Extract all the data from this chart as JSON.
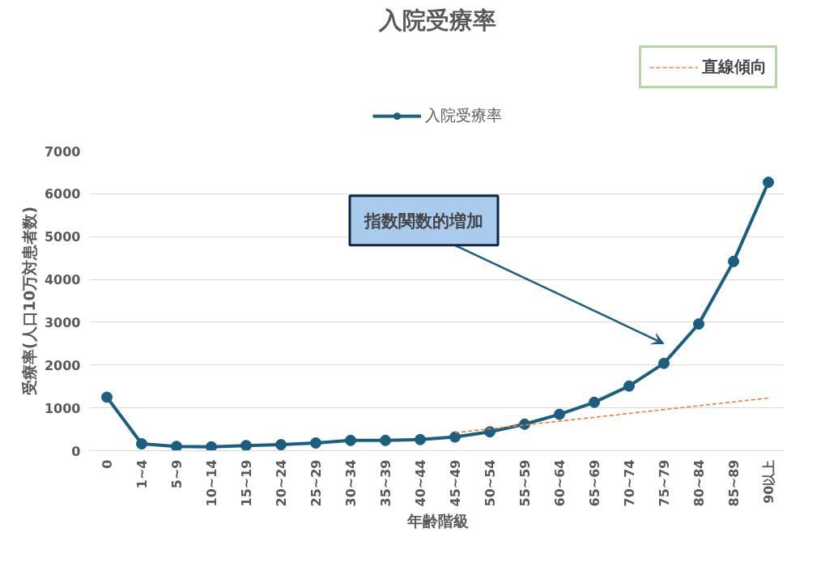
{
  "chart_data": {
    "type": "line",
    "title": "入院受療率",
    "xlabel": "年齢階級",
    "ylabel": "受療率(人口10万対患者数)",
    "categories": [
      "0",
      "1~4",
      "5~9",
      "10~14",
      "15~19",
      "20~24",
      "25~29",
      "30~34",
      "35~39",
      "40~44",
      "45~49",
      "50~54",
      "55~59",
      "60~64",
      "65~69",
      "70~74",
      "75~79",
      "80~84",
      "85~89",
      "90以上"
    ],
    "series": [
      {
        "name": "入院受療率",
        "color": "#1a5e80",
        "marker": "circle",
        "line_style": "solid",
        "values": [
          1250,
          160,
          100,
          90,
          120,
          140,
          180,
          240,
          240,
          260,
          320,
          440,
          620,
          850,
          1130,
          1510,
          2040,
          2960,
          4420,
          6270
        ]
      },
      {
        "name": "直線傾向",
        "type": "line",
        "color": "#ed7d31",
        "marker": "none",
        "line_style": "dashed",
        "x": [
          "45~49",
          "90以上"
        ],
        "values": [
          420,
          1230
        ]
      }
    ],
    "ylim": [
      0,
      7000
    ],
    "yticks": [
      0,
      1000,
      2000,
      3000,
      4000,
      5000,
      6000,
      7000
    ],
    "grid": "y",
    "legend": "top",
    "annotations": [
      "指数関数的増加"
    ]
  }
}
